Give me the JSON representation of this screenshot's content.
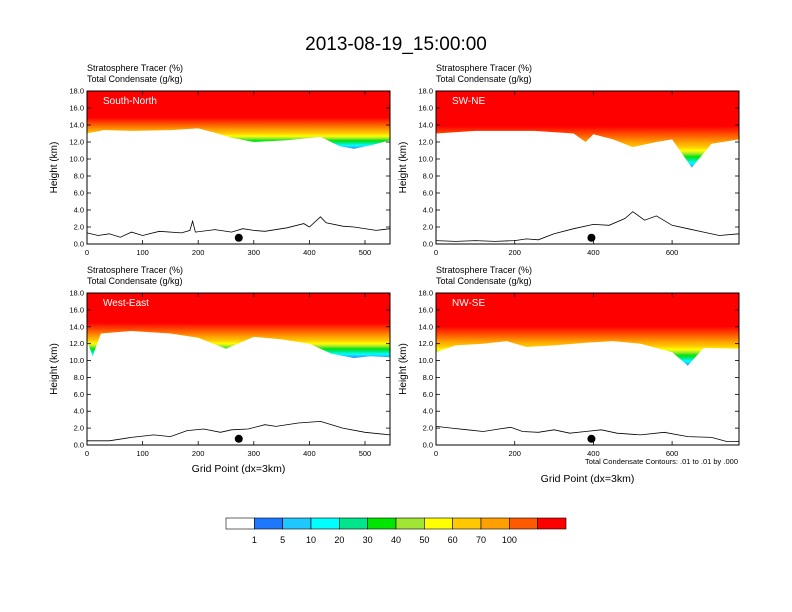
{
  "title": "2013-08-19_15:00:00",
  "footnote": "Total Condensate Contours: .01 to .01 by .000",
  "colorbar": {
    "labels": [
      "1",
      "5",
      "10",
      "20",
      "30",
      "40",
      "50",
      "60",
      "70",
      "100"
    ],
    "colors": [
      "#ffffff",
      "#1e78ff",
      "#1ec8ff",
      "#00ffff",
      "#00e68c",
      "#00e600",
      "#a0e632",
      "#ffff00",
      "#ffc800",
      "#ffa000",
      "#ff5a00",
      "#ff0000"
    ]
  },
  "colors": {
    "frame": "#000000",
    "background": "#ffffff"
  },
  "chart_data": [
    {
      "type": "heatmap",
      "label": "South-North",
      "subtitle_left": "Stratosphere Tracer   (%)",
      "subtitle_left2": "Total Condensate   (g/kg)",
      "xlabel": "",
      "ylabel": "Height (km)",
      "xlim": [
        0,
        545
      ],
      "ylim": [
        0,
        18
      ],
      "xticks": [
        "0",
        "100",
        "200",
        "300",
        "400",
        "500"
      ],
      "yticks": [
        "0.0",
        "2.0",
        "4.0",
        "6.0",
        "8.0",
        "10.0",
        "12.0",
        "14.0",
        "16.0",
        "18.0"
      ],
      "tracer_base_km": [
        [
          0,
          13.0
        ],
        [
          30,
          13.4
        ],
        [
          80,
          13.3
        ],
        [
          150,
          13.4
        ],
        [
          200,
          13.6
        ],
        [
          230,
          13.1
        ],
        [
          260,
          12.5
        ],
        [
          300,
          12.0
        ],
        [
          360,
          12.2
        ],
        [
          420,
          12.6
        ],
        [
          455,
          11.5
        ],
        [
          480,
          11.2
        ],
        [
          510,
          11.6
        ],
        [
          545,
          12.2
        ]
      ],
      "terrain_km": [
        [
          0,
          1.3
        ],
        [
          20,
          1.0
        ],
        [
          40,
          1.2
        ],
        [
          60,
          0.8
        ],
        [
          80,
          1.4
        ],
        [
          100,
          1.0
        ],
        [
          130,
          1.5
        ],
        [
          170,
          1.3
        ],
        [
          185,
          1.6
        ],
        [
          190,
          2.7
        ],
        [
          195,
          1.4
        ],
        [
          230,
          1.7
        ],
        [
          260,
          1.4
        ],
        [
          280,
          1.8
        ],
        [
          300,
          1.6
        ],
        [
          320,
          1.5
        ],
        [
          360,
          1.9
        ],
        [
          390,
          2.4
        ],
        [
          400,
          2.0
        ],
        [
          420,
          3.2
        ],
        [
          430,
          2.5
        ],
        [
          460,
          2.1
        ],
        [
          480,
          2.0
        ],
        [
          520,
          1.6
        ],
        [
          545,
          1.8
        ]
      ],
      "marker_x": 273
    },
    {
      "type": "heatmap",
      "label": "SW-NE",
      "subtitle_left": "Stratosphere Tracer   (%)",
      "subtitle_left2": "Total Condensate   (g/kg)",
      "xlabel": "",
      "ylabel": "Height (km)",
      "xlim": [
        0,
        770
      ],
      "ylim": [
        0,
        18
      ],
      "xticks": [
        "0",
        "200",
        "400",
        "600"
      ],
      "yticks": [
        "0.0",
        "2.0",
        "4.0",
        "6.0",
        "8.0",
        "10.0",
        "12.0",
        "14.0",
        "16.0",
        "18.0"
      ],
      "tracer_base_km": [
        [
          0,
          13.0
        ],
        [
          100,
          13.3
        ],
        [
          250,
          13.3
        ],
        [
          350,
          13.0
        ],
        [
          380,
          12.0
        ],
        [
          400,
          12.9
        ],
        [
          450,
          12.3
        ],
        [
          500,
          11.4
        ],
        [
          560,
          12.0
        ],
        [
          600,
          12.3
        ],
        [
          650,
          9.0
        ],
        [
          700,
          11.8
        ],
        [
          770,
          12.3
        ]
      ],
      "terrain_km": [
        [
          0,
          0.4
        ],
        [
          50,
          0.3
        ],
        [
          100,
          0.4
        ],
        [
          150,
          0.3
        ],
        [
          200,
          0.4
        ],
        [
          230,
          0.6
        ],
        [
          260,
          0.5
        ],
        [
          300,
          1.2
        ],
        [
          350,
          1.8
        ],
        [
          400,
          2.3
        ],
        [
          440,
          2.2
        ],
        [
          480,
          3.0
        ],
        [
          500,
          3.8
        ],
        [
          530,
          2.8
        ],
        [
          560,
          3.3
        ],
        [
          600,
          2.2
        ],
        [
          640,
          1.8
        ],
        [
          680,
          1.4
        ],
        [
          720,
          1.0
        ],
        [
          770,
          1.2
        ]
      ],
      "marker_x": 395
    },
    {
      "type": "heatmap",
      "label": "West-East",
      "subtitle_left": "Stratosphere Tracer   (%)",
      "subtitle_left2": "Total Condensate   (g/kg)",
      "xlabel": "Grid Point (dx=3km)",
      "ylabel": "Height (km)",
      "xlim": [
        0,
        545
      ],
      "ylim": [
        0,
        18
      ],
      "xticks": [
        "0",
        "100",
        "200",
        "300",
        "400",
        "500"
      ],
      "yticks": [
        "0.0",
        "2.0",
        "4.0",
        "6.0",
        "8.0",
        "10.0",
        "12.0",
        "14.0",
        "16.0",
        "18.0"
      ],
      "tracer_base_km": [
        [
          0,
          12.4
        ],
        [
          10,
          10.5
        ],
        [
          25,
          13.2
        ],
        [
          80,
          13.5
        ],
        [
          150,
          13.2
        ],
        [
          200,
          12.7
        ],
        [
          250,
          11.4
        ],
        [
          300,
          12.8
        ],
        [
          350,
          12.5
        ],
        [
          400,
          12.0
        ],
        [
          440,
          10.8
        ],
        [
          480,
          10.3
        ],
        [
          510,
          10.5
        ],
        [
          545,
          10.4
        ]
      ],
      "terrain_km": [
        [
          0,
          0.5
        ],
        [
          40,
          0.5
        ],
        [
          80,
          0.9
        ],
        [
          120,
          1.2
        ],
        [
          150,
          1.0
        ],
        [
          180,
          1.7
        ],
        [
          210,
          1.9
        ],
        [
          240,
          1.5
        ],
        [
          260,
          1.8
        ],
        [
          290,
          1.9
        ],
        [
          320,
          2.4
        ],
        [
          340,
          2.2
        ],
        [
          380,
          2.6
        ],
        [
          420,
          2.8
        ],
        [
          460,
          2.0
        ],
        [
          500,
          1.5
        ],
        [
          545,
          1.2
        ]
      ],
      "marker_x": 273
    },
    {
      "type": "heatmap",
      "label": "NW-SE",
      "subtitle_left": "Stratosphere Tracer   (%)",
      "subtitle_left2": "Total Condensate   (g/kg)",
      "xlabel": "Grid Point (dx=3km)",
      "ylabel": "Height (km)",
      "xlim": [
        0,
        770
      ],
      "ylim": [
        0,
        18
      ],
      "xticks": [
        "0",
        "200",
        "400",
        "600"
      ],
      "yticks": [
        "0.0",
        "2.0",
        "4.0",
        "6.0",
        "8.0",
        "10.0",
        "12.0",
        "14.0",
        "16.0",
        "18.0"
      ],
      "tracer_base_km": [
        [
          0,
          11.0
        ],
        [
          50,
          11.8
        ],
        [
          120,
          12.0
        ],
        [
          180,
          12.3
        ],
        [
          230,
          11.6
        ],
        [
          300,
          11.8
        ],
        [
          380,
          12.1
        ],
        [
          450,
          12.3
        ],
        [
          520,
          12.0
        ],
        [
          600,
          11.0
        ],
        [
          640,
          9.4
        ],
        [
          680,
          11.5
        ],
        [
          770,
          11.4
        ]
      ],
      "terrain_km": [
        [
          0,
          2.2
        ],
        [
          40,
          2.0
        ],
        [
          80,
          1.8
        ],
        [
          120,
          1.6
        ],
        [
          160,
          1.9
        ],
        [
          190,
          2.1
        ],
        [
          220,
          1.6
        ],
        [
          260,
          1.5
        ],
        [
          300,
          1.8
        ],
        [
          340,
          1.4
        ],
        [
          380,
          1.6
        ],
        [
          420,
          1.8
        ],
        [
          460,
          1.4
        ],
        [
          520,
          1.2
        ],
        [
          580,
          1.5
        ],
        [
          640,
          1.0
        ],
        [
          700,
          0.9
        ],
        [
          740,
          0.4
        ],
        [
          770,
          0.4
        ]
      ],
      "marker_x": 395
    }
  ]
}
